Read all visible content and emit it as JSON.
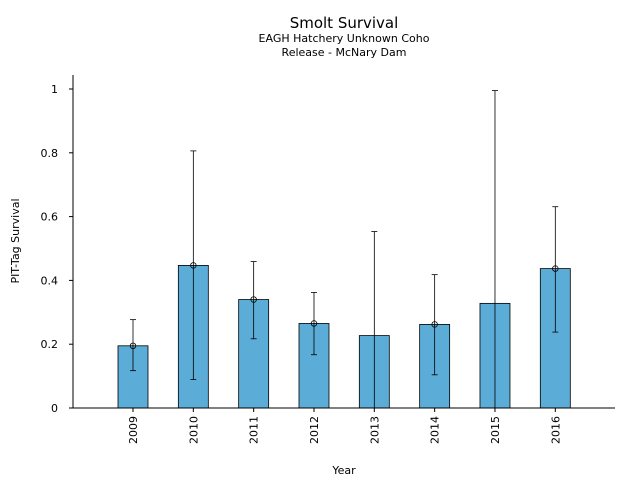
{
  "chart_data": {
    "type": "bar",
    "title": "Smolt Survival",
    "subtitle_lines": [
      "EAGH Hatchery Unknown Coho",
      "Release - McNary Dam"
    ],
    "xlabel": "Year",
    "ylabel": "PIT-Tag Survival",
    "categories": [
      "2009",
      "2010",
      "2011",
      "2012",
      "2013",
      "2014",
      "2015",
      "2016"
    ],
    "values": [
      0.195,
      0.447,
      0.34,
      0.265,
      0.227,
      0.262,
      0.328,
      0.437
    ],
    "error_low": [
      0.117,
      0.089,
      0.217,
      0.167,
      null,
      0.104,
      null,
      0.238
    ],
    "error_high": [
      0.277,
      0.806,
      0.459,
      0.362,
      0.553,
      0.418,
      0.995,
      0.631
    ],
    "markers": [
      true,
      true,
      true,
      true,
      false,
      true,
      false,
      true
    ],
    "yticks": [
      "0",
      "0.2",
      "0.4",
      "0.6",
      "0.8",
      "1"
    ],
    "ytick_values": [
      0,
      0.2,
      0.4,
      0.6,
      0.8,
      1.0
    ],
    "ylim": [
      0,
      1.045
    ],
    "bar_color": "#5bacd6",
    "grid": false,
    "legend": "none"
  }
}
